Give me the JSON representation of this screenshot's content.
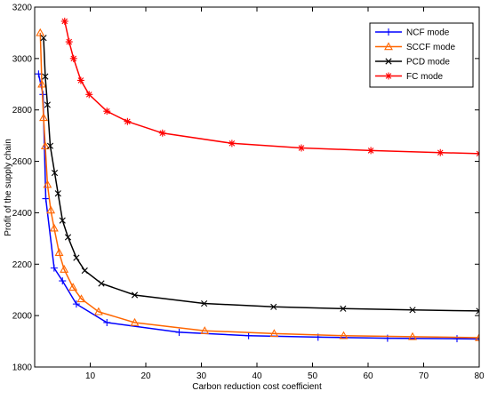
{
  "chart_data": {
    "type": "line",
    "title": "",
    "xlabel": "Carbon reduction cost coefficient",
    "ylabel": "Profit of the supply chain",
    "xlim": [
      0,
      80
    ],
    "ylim": [
      1800,
      3200
    ],
    "xticks": [
      10,
      20,
      30,
      40,
      50,
      60,
      70,
      80
    ],
    "yticks": [
      1800,
      2000,
      2200,
      2400,
      2600,
      2800,
      3000,
      3200
    ],
    "grid": false,
    "legend_position": "top-right",
    "series": [
      {
        "name": "NCF mode",
        "color": "#0000ff",
        "marker": "plus",
        "x": [
          0.7,
          1.5,
          2.0,
          3.5,
          5.0,
          7.5,
          13.0,
          26.0,
          38.5,
          51.0,
          63.5,
          76.0,
          80.0
        ],
        "y": [
          2940,
          2860,
          2455,
          2185,
          2135,
          2045,
          1973,
          1935,
          1922,
          1916,
          1912,
          1910,
          1909
        ]
      },
      {
        "name": "SCCF mode",
        "color": "#ff6600",
        "marker": "triangle",
        "x": [
          1.0,
          1.3,
          1.6,
          1.9,
          2.3,
          2.9,
          3.5,
          4.4,
          5.3,
          6.9,
          8.4,
          11.5,
          18.0,
          30.6,
          43.1,
          55.6,
          68.0,
          80.0
        ],
        "y": [
          3100,
          2900,
          2770,
          2660,
          2510,
          2410,
          2340,
          2245,
          2180,
          2110,
          2065,
          2015,
          1973,
          1941,
          1930,
          1922,
          1918,
          1914
        ]
      },
      {
        "name": "PCD mode",
        "color": "#000000",
        "marker": "x",
        "x": [
          1.6,
          1.9,
          2.3,
          2.8,
          3.6,
          4.2,
          5.0,
          6.0,
          7.5,
          9.0,
          12.0,
          18.0,
          30.5,
          43.0,
          55.5,
          68.0,
          80.0
        ],
        "y": [
          3080,
          2930,
          2820,
          2660,
          2555,
          2475,
          2370,
          2305,
          2225,
          2175,
          2125,
          2080,
          2047,
          2034,
          2027,
          2022,
          2018
        ]
      },
      {
        "name": "FC mode",
        "color": "#ff0000",
        "marker": "asterisk",
        "x": [
          5.4,
          6.2,
          7.0,
          8.3,
          9.8,
          13.0,
          16.7,
          23.0,
          35.5,
          48.0,
          60.5,
          73.0,
          80.0
        ],
        "y": [
          3145,
          3065,
          3000,
          2915,
          2860,
          2795,
          2755,
          2710,
          2670,
          2652,
          2642,
          2634,
          2630
        ]
      }
    ]
  }
}
